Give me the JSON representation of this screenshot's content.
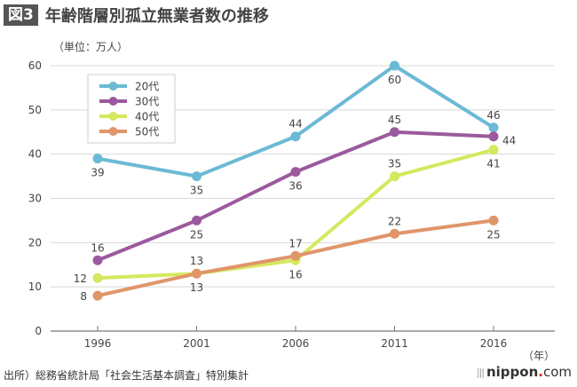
{
  "header": {
    "badge": "図3",
    "title": "年齢階層別孤立無業者数の推移"
  },
  "footer": {
    "source": "出所）総務省統計局「社会生活基本調査」特別集計",
    "logo": {
      "bars": "|||",
      "name": "nippon",
      "dot": ".",
      "tld": "com"
    }
  },
  "chart_data": {
    "type": "line",
    "title": "年齢階層別孤立無業者数の推移",
    "ylabel": "（単位：万人）",
    "xlabel": "（年）",
    "x": [
      "1996",
      "2001",
      "2006",
      "2011",
      "2016"
    ],
    "ylim": [
      0,
      60
    ],
    "yticks": [
      0,
      10,
      20,
      30,
      40,
      50,
      60
    ],
    "grid": true,
    "legend": "top-left",
    "series": [
      {
        "name": "20代",
        "color": "#6bb9d4",
        "values": [
          39,
          35,
          44,
          60,
          46
        ],
        "label_pos": [
          "below",
          "below",
          "above",
          "below",
          "above"
        ]
      },
      {
        "name": "30代",
        "color": "#9b5a9d",
        "values": [
          16,
          25,
          36,
          45,
          44
        ],
        "label_pos": [
          "above",
          "below",
          "below",
          "above",
          "right"
        ]
      },
      {
        "name": "40代",
        "color": "#d5e85e",
        "values": [
          12,
          13,
          16,
          35,
          41
        ],
        "label_pos": [
          "left",
          "above",
          "below",
          "above",
          "below"
        ]
      },
      {
        "name": "50代",
        "color": "#e0956a",
        "values": [
          8,
          13,
          17,
          22,
          25
        ],
        "label_pos": [
          "left",
          "below",
          "above",
          "above",
          "below"
        ]
      }
    ]
  }
}
